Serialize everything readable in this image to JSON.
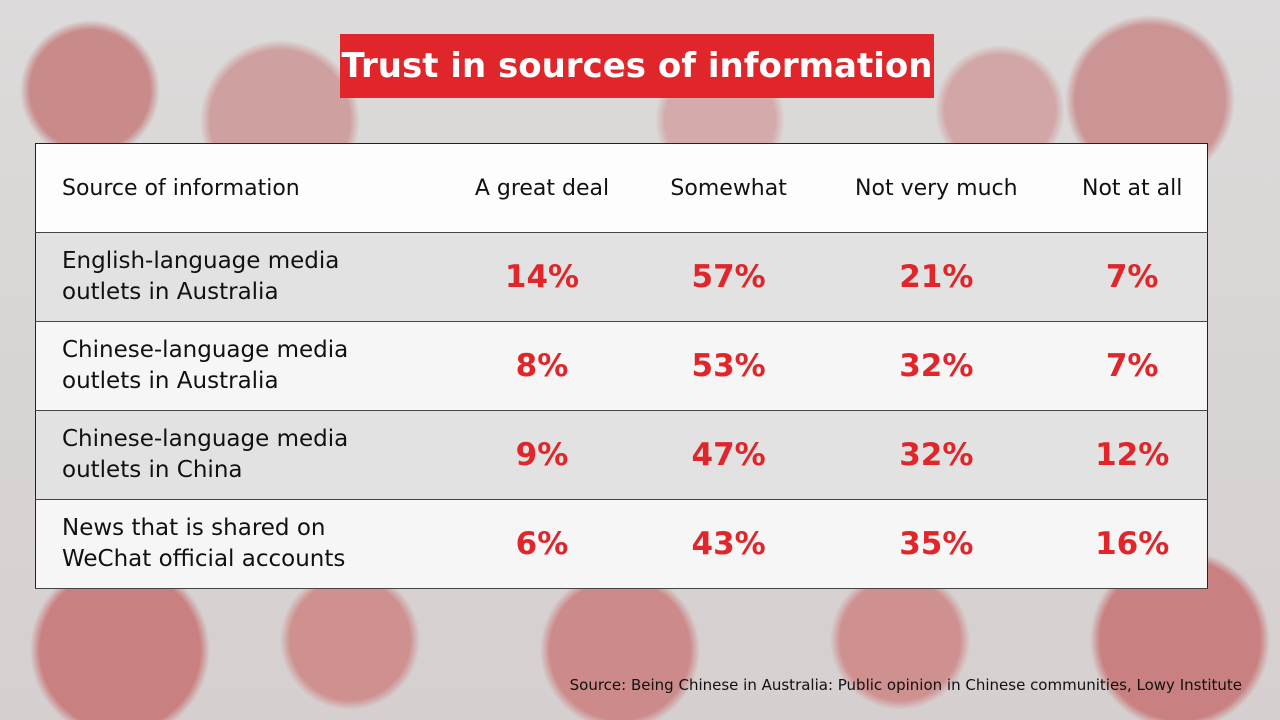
{
  "title": "Trust in sources of information",
  "chart_data": {
    "type": "table",
    "title": "Trust in sources of information",
    "columns": [
      "Source of information",
      "A great deal",
      "Somewhat",
      "Not very much",
      "Not at all"
    ],
    "rows": [
      {
        "source": "English-language media outlets in Australia",
        "values": [
          "14%",
          "57%",
          "21%",
          "7%"
        ]
      },
      {
        "source": "Chinese-language media outlets in Australia",
        "values": [
          "8%",
          "53%",
          "32%",
          "7%"
        ]
      },
      {
        "source": "Chinese-language media outlets in China",
        "values": [
          "9%",
          "47%",
          "32%",
          "12%"
        ]
      },
      {
        "source": "News that is shared on WeChat official accounts",
        "values": [
          "6%",
          "43%",
          "35%",
          "16%"
        ]
      }
    ]
  },
  "source": "Source: Being Chinese in Australia: Public opinion in Chinese communities, Lowy Institute"
}
